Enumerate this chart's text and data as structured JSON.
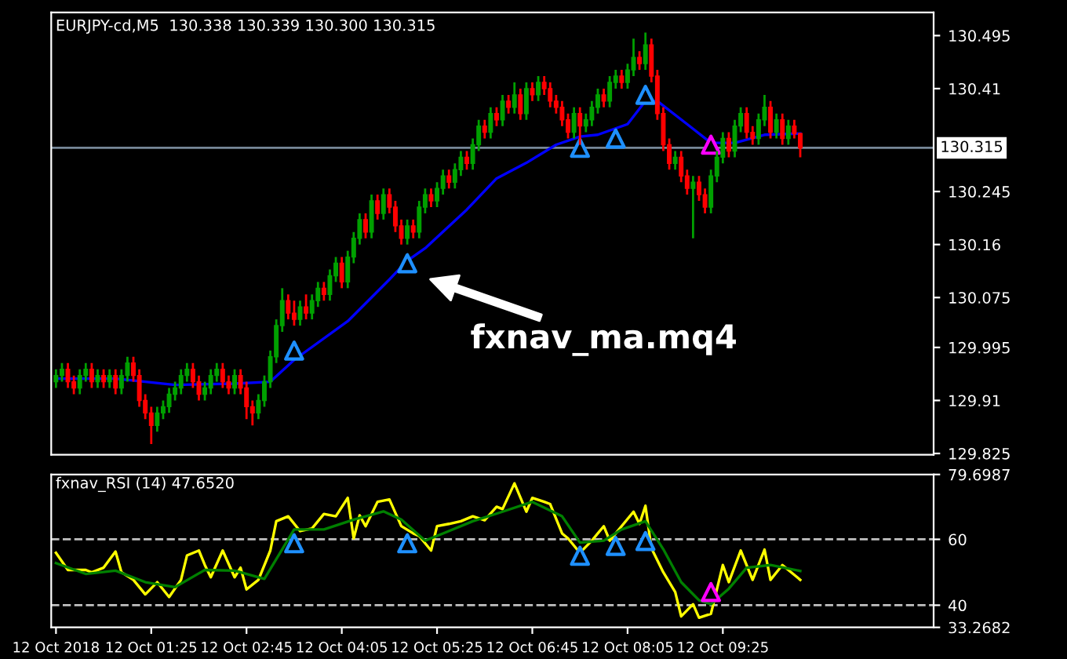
{
  "chart_data": [
    {
      "type": "candlestick",
      "title": "EURJPY-cd,M5  130.338 130.339 130.300 130.315",
      "colors": [
        "#00a000",
        "#00a000",
        "#ff0000",
        "#ff0000",
        "#00a000",
        "#00a000",
        "#ff0000",
        "#00a000",
        "#ff0000",
        "#00a000",
        "#ff0000",
        "#00a000",
        "#00a000",
        "#ff0000",
        "#ff0000",
        "#ff0000",
        "#ff0000",
        "#00a000",
        "#00a000",
        "#00a000",
        "#00a000",
        "#00a000",
        "#00a000",
        "#ff0000",
        "#ff0000",
        "#00a000",
        "#00a000",
        "#00a000",
        "#ff0000",
        "#ff0000",
        "#00a000",
        "#ff0000",
        "#ff0000",
        "#ff0000",
        "#00a000",
        "#00a000",
        "#00a000",
        "#00a000",
        "#00a000",
        "#ff0000",
        "#ff0000",
        "#00a000",
        "#ff0000",
        "#00a000",
        "#00a000",
        "#ff0000",
        "#00a000",
        "#00a000",
        "#ff0000",
        "#00a000",
        "#00a000",
        "#00a000",
        "#ff0000",
        "#00a000",
        "#ff0000",
        "#00a000",
        "#ff0000",
        "#ff0000",
        "#ff0000",
        "#00a000",
        "#ff0000",
        "#00a000",
        "#00a000",
        "#ff0000",
        "#00a000",
        "#00a000",
        "#ff0000",
        "#00a000",
        "#00a000",
        "#ff0000",
        "#00a000",
        "#00a000",
        "#ff0000",
        "#00a000",
        "#ff0000",
        "#00a000",
        "#ff0000",
        "#00a000",
        "#ff0000",
        "#00a000",
        "#ff0000",
        "#00a000",
        "#ff0000",
        "#ff0000",
        "#ff0000",
        "#ff0000",
        "#ff0000",
        "#00a000",
        "#ff0000",
        "#00a000",
        "#00a000",
        "#00a000",
        "#ff0000",
        "#00a000",
        "#00a000",
        "#ff0000",
        "#00a000",
        "#00a000",
        "#ff0000",
        "#00a000",
        "#ff0000",
        "#ff0000",
        "#ff0000",
        "#ff0000",
        "#00a000",
        "#ff0000",
        "#ff0000",
        "#00a000",
        "#ff0000",
        "#ff0000",
        "#00a000",
        "#00a000",
        "#00a000",
        "#ff0000",
        "#00a000",
        "#00a000",
        "#ff0000",
        "#ff0000",
        "#00a000",
        "#00a000",
        "#ff0000",
        "#00a000",
        "#ff0000",
        "#00a000",
        "#ff0000",
        "#ff0000"
      ],
      "x": [
        "2018-10-12T00:05",
        "2018-10-12T00:10",
        "2018-10-12T00:15",
        "2018-10-12T00:20",
        "2018-10-12T00:25",
        "2018-10-12T00:30",
        "2018-10-12T00:35",
        "2018-10-12T00:40",
        "2018-10-12T00:45",
        "2018-10-12T00:50",
        "2018-10-12T00:55",
        "2018-10-12T01:00",
        "2018-10-12T01:05",
        "2018-10-12T01:10",
        "2018-10-12T01:15",
        "2018-10-12T01:20",
        "2018-10-12T01:25",
        "2018-10-12T01:30",
        "2018-10-12T01:35",
        "2018-10-12T01:40",
        "2018-10-12T01:45",
        "2018-10-12T01:50",
        "2018-10-12T01:55",
        "2018-10-12T02:00",
        "2018-10-12T02:05",
        "2018-10-12T02:10",
        "2018-10-12T02:15",
        "2018-10-12T02:20",
        "2018-10-12T02:25",
        "2018-10-12T02:30",
        "2018-10-12T02:35",
        "2018-10-12T02:40",
        "2018-10-12T02:45",
        "2018-10-12T02:50",
        "2018-10-12T02:55",
        "2018-10-12T03:00",
        "2018-10-12T03:05",
        "2018-10-12T03:10",
        "2018-10-12T03:15",
        "2018-10-12T03:20",
        "2018-10-12T03:25",
        "2018-10-12T03:30",
        "2018-10-12T03:35",
        "2018-10-12T03:40",
        "2018-10-12T03:45",
        "2018-10-12T03:50",
        "2018-10-12T03:55",
        "2018-10-12T04:00",
        "2018-10-12T04:05",
        "2018-10-12T04:10",
        "2018-10-12T04:15",
        "2018-10-12T04:20",
        "2018-10-12T04:25",
        "2018-10-12T04:30",
        "2018-10-12T04:35",
        "2018-10-12T04:40",
        "2018-10-12T04:45",
        "2018-10-12T04:50",
        "2018-10-12T04:55",
        "2018-10-12T05:00",
        "2018-10-12T05:05",
        "2018-10-12T05:10",
        "2018-10-12T05:15",
        "2018-10-12T05:20",
        "2018-10-12T05:25",
        "2018-10-12T05:30",
        "2018-10-12T05:35",
        "2018-10-12T05:40",
        "2018-10-12T05:45",
        "2018-10-12T05:50",
        "2018-10-12T05:55",
        "2018-10-12T06:00",
        "2018-10-12T06:05",
        "2018-10-12T06:10",
        "2018-10-12T06:15",
        "2018-10-12T06:20",
        "2018-10-12T06:25",
        "2018-10-12T06:30",
        "2018-10-12T06:35",
        "2018-10-12T06:40",
        "2018-10-12T06:45",
        "2018-10-12T06:50",
        "2018-10-12T06:55",
        "2018-10-12T07:00",
        "2018-10-12T07:05",
        "2018-10-12T07:10",
        "2018-10-12T07:15",
        "2018-10-12T07:20",
        "2018-10-12T07:25",
        "2018-10-12T07:30",
        "2018-10-12T07:35",
        "2018-10-12T07:40",
        "2018-10-12T07:45",
        "2018-10-12T07:50",
        "2018-10-12T07:55",
        "2018-10-12T08:00",
        "2018-10-12T08:05",
        "2018-10-12T08:10",
        "2018-10-12T08:15",
        "2018-10-12T08:20",
        "2018-10-12T08:25",
        "2018-10-12T08:30",
        "2018-10-12T08:35",
        "2018-10-12T08:40",
        "2018-10-12T08:45",
        "2018-10-12T08:50",
        "2018-10-12T08:55",
        "2018-10-12T09:00",
        "2018-10-12T09:05",
        "2018-10-12T09:10",
        "2018-10-12T09:15",
        "2018-10-12T09:20",
        "2018-10-12T09:25",
        "2018-10-12T09:30",
        "2018-10-12T09:35",
        "2018-10-12T09:40",
        "2018-10-12T09:45",
        "2018-10-12T09:50",
        "2018-10-12T09:55",
        "2018-10-12T10:00",
        "2018-10-12T10:05",
        "2018-10-12T10:10",
        "2018-10-12T10:15",
        "2018-10-12T10:20",
        "2018-10-12T10:25",
        "2018-10-12T10:30"
      ],
      "ohlc": [
        [
          129.94,
          129.96,
          129.93,
          129.95
        ],
        [
          129.95,
          129.97,
          129.94,
          129.96
        ],
        [
          129.96,
          129.97,
          129.93,
          129.94
        ],
        [
          129.94,
          129.95,
          129.92,
          129.93
        ],
        [
          129.93,
          129.96,
          129.92,
          129.95
        ],
        [
          129.95,
          129.97,
          129.94,
          129.96
        ],
        [
          129.96,
          129.97,
          129.93,
          129.94
        ],
        [
          129.94,
          129.96,
          129.93,
          129.95
        ],
        [
          129.95,
          129.96,
          129.93,
          129.94
        ],
        [
          129.94,
          129.96,
          129.93,
          129.95
        ],
        [
          129.95,
          129.96,
          129.92,
          129.93
        ],
        [
          129.93,
          129.96,
          129.92,
          129.95
        ],
        [
          129.95,
          129.98,
          129.94,
          129.97
        ],
        [
          129.97,
          129.98,
          129.94,
          129.95
        ],
        [
          129.95,
          129.96,
          129.9,
          129.91
        ],
        [
          129.91,
          129.92,
          129.88,
          129.89
        ],
        [
          129.89,
          129.9,
          129.84,
          129.87
        ],
        [
          129.87,
          129.9,
          129.86,
          129.89
        ],
        [
          129.89,
          129.91,
          129.88,
          129.9
        ],
        [
          129.9,
          129.93,
          129.89,
          129.92
        ],
        [
          129.92,
          129.94,
          129.91,
          129.93
        ],
        [
          129.93,
          129.96,
          129.92,
          129.95
        ],
        [
          129.95,
          129.97,
          129.94,
          129.96
        ],
        [
          129.96,
          129.97,
          129.93,
          129.94
        ],
        [
          129.94,
          129.95,
          129.91,
          129.92
        ],
        [
          129.92,
          129.94,
          129.91,
          129.93
        ],
        [
          129.93,
          129.96,
          129.92,
          129.95
        ],
        [
          129.95,
          129.97,
          129.94,
          129.96
        ],
        [
          129.96,
          129.97,
          129.93,
          129.94
        ],
        [
          129.94,
          129.95,
          129.92,
          129.93
        ],
        [
          129.93,
          129.96,
          129.92,
          129.95
        ],
        [
          129.95,
          129.96,
          129.92,
          129.93
        ],
        [
          129.93,
          129.94,
          129.88,
          129.9
        ],
        [
          129.9,
          129.91,
          129.87,
          129.89
        ],
        [
          129.89,
          129.92,
          129.88,
          129.91
        ],
        [
          129.91,
          129.95,
          129.9,
          129.94
        ],
        [
          129.94,
          129.99,
          129.93,
          129.98
        ],
        [
          129.98,
          130.04,
          129.97,
          130.03
        ],
        [
          130.03,
          130.09,
          130.02,
          130.07
        ],
        [
          130.07,
          130.08,
          130.04,
          130.05
        ],
        [
          130.05,
          130.07,
          130.03,
          130.04
        ],
        [
          130.04,
          130.07,
          130.03,
          130.06
        ],
        [
          130.06,
          130.08,
          130.04,
          130.05
        ],
        [
          130.05,
          130.08,
          130.04,
          130.07
        ],
        [
          130.07,
          130.1,
          130.06,
          130.09
        ],
        [
          130.09,
          130.1,
          130.07,
          130.08
        ],
        [
          130.08,
          130.12,
          130.07,
          130.11
        ],
        [
          130.11,
          130.14,
          130.1,
          130.13
        ],
        [
          130.13,
          130.14,
          130.09,
          130.1
        ],
        [
          130.1,
          130.15,
          130.09,
          130.14
        ],
        [
          130.14,
          130.18,
          130.13,
          130.17
        ],
        [
          130.17,
          130.21,
          130.16,
          130.2
        ],
        [
          130.2,
          130.21,
          130.17,
          130.18
        ],
        [
          130.18,
          130.24,
          130.17,
          130.23
        ],
        [
          130.23,
          130.24,
          130.2,
          130.21
        ],
        [
          130.21,
          130.25,
          130.2,
          130.24
        ],
        [
          130.24,
          130.25,
          130.21,
          130.22
        ],
        [
          130.22,
          130.23,
          130.18,
          130.19
        ],
        [
          130.19,
          130.2,
          130.16,
          130.17
        ],
        [
          130.17,
          130.2,
          130.16,
          130.19
        ],
        [
          130.19,
          130.2,
          130.17,
          130.18
        ],
        [
          130.18,
          130.23,
          130.17,
          130.22
        ],
        [
          130.22,
          130.25,
          130.21,
          130.24
        ],
        [
          130.24,
          130.25,
          130.22,
          130.23
        ],
        [
          130.23,
          130.26,
          130.22,
          130.25
        ],
        [
          130.25,
          130.28,
          130.24,
          130.27
        ],
        [
          130.27,
          130.28,
          130.25,
          130.26
        ],
        [
          130.26,
          130.29,
          130.25,
          130.28
        ],
        [
          130.28,
          130.31,
          130.27,
          130.3
        ],
        [
          130.3,
          130.31,
          130.28,
          130.29
        ],
        [
          130.29,
          130.33,
          130.28,
          130.32
        ],
        [
          130.32,
          130.36,
          130.31,
          130.35
        ],
        [
          130.35,
          130.36,
          130.33,
          130.34
        ],
        [
          130.34,
          130.38,
          130.33,
          130.37
        ],
        [
          130.37,
          130.38,
          130.35,
          130.36
        ],
        [
          130.36,
          130.4,
          130.35,
          130.39
        ],
        [
          130.39,
          130.4,
          130.37,
          130.38
        ],
        [
          130.38,
          130.42,
          130.37,
          130.4
        ],
        [
          130.4,
          130.41,
          130.36,
          130.37
        ],
        [
          130.37,
          130.42,
          130.36,
          130.41
        ],
        [
          130.41,
          130.42,
          130.39,
          130.4
        ],
        [
          130.4,
          130.43,
          130.39,
          130.42
        ],
        [
          130.42,
          130.43,
          130.4,
          130.41
        ],
        [
          130.41,
          130.42,
          130.38,
          130.39
        ],
        [
          130.39,
          130.4,
          130.37,
          130.38
        ],
        [
          130.38,
          130.39,
          130.35,
          130.36
        ],
        [
          130.36,
          130.37,
          130.33,
          130.34
        ],
        [
          130.34,
          130.38,
          130.33,
          130.37
        ],
        [
          130.37,
          130.38,
          130.32,
          130.35
        ],
        [
          130.35,
          130.37,
          130.34,
          130.36
        ],
        [
          130.36,
          130.39,
          130.35,
          130.38
        ],
        [
          130.38,
          130.41,
          130.37,
          130.4
        ],
        [
          130.4,
          130.41,
          130.38,
          130.39
        ],
        [
          130.39,
          130.43,
          130.38,
          130.42
        ],
        [
          130.42,
          130.44,
          130.41,
          130.43
        ],
        [
          130.43,
          130.44,
          130.41,
          130.42
        ],
        [
          130.42,
          130.45,
          130.41,
          130.44
        ],
        [
          130.44,
          130.49,
          130.43,
          130.46
        ],
        [
          130.46,
          130.47,
          130.44,
          130.45
        ],
        [
          130.45,
          130.5,
          130.44,
          130.48
        ],
        [
          130.48,
          130.49,
          130.42,
          130.43
        ],
        [
          130.43,
          130.44,
          130.36,
          130.37
        ],
        [
          130.37,
          130.38,
          130.31,
          130.32
        ],
        [
          130.32,
          130.33,
          130.28,
          130.29
        ],
        [
          130.29,
          130.31,
          130.28,
          130.3
        ],
        [
          130.3,
          130.31,
          130.26,
          130.27
        ],
        [
          130.27,
          130.28,
          130.24,
          130.25
        ],
        [
          130.25,
          130.27,
          130.17,
          130.26
        ],
        [
          130.26,
          130.27,
          130.23,
          130.24
        ],
        [
          130.24,
          130.25,
          130.21,
          130.22
        ],
        [
          130.22,
          130.28,
          130.21,
          130.27
        ],
        [
          130.27,
          130.31,
          130.26,
          130.3
        ],
        [
          130.3,
          130.34,
          130.29,
          130.33
        ],
        [
          130.33,
          130.34,
          130.3,
          130.31
        ],
        [
          130.31,
          130.36,
          130.3,
          130.35
        ],
        [
          130.35,
          130.38,
          130.34,
          130.37
        ],
        [
          130.37,
          130.38,
          130.33,
          130.34
        ],
        [
          130.34,
          130.35,
          130.32,
          130.33
        ],
        [
          130.33,
          130.37,
          130.32,
          130.36
        ],
        [
          130.36,
          130.4,
          130.35,
          130.38
        ],
        [
          130.38,
          130.39,
          130.33,
          130.34
        ],
        [
          130.34,
          130.37,
          130.33,
          130.36
        ],
        [
          130.36,
          130.37,
          130.32,
          130.33
        ],
        [
          130.33,
          130.36,
          130.32,
          130.35
        ],
        [
          130.35,
          130.36,
          130.33,
          130.338
        ],
        [
          130.338,
          130.339,
          130.3,
          130.315
        ]
      ],
      "series": [
        {
          "type": "line",
          "color": "#0000ff",
          "x": [
            "2018-10-12T00:05",
            "2018-10-12T00:55",
            "2018-10-12T01:45",
            "2018-10-12T02:35",
            "2018-10-12T03:05",
            "2018-10-12T03:25",
            "2018-10-12T04:10",
            "2018-10-12T04:45",
            "2018-10-12T05:00",
            "2018-10-12T05:15",
            "2018-10-12T05:50",
            "2018-10-12T06:15",
            "2018-10-12T06:40",
            "2018-10-12T07:05",
            "2018-10-12T07:25",
            "2018-10-12T07:40",
            "2018-10-12T08:05",
            "2018-10-12T08:20",
            "2018-10-12T08:30",
            "2018-10-12T08:55",
            "2018-10-12T09:15",
            "2018-10-12T09:35",
            "2018-10-12T10:00",
            "2018-10-12T10:30"
          ],
          "values": [
            129.945,
            129.945,
            129.935,
            129.937,
            129.94,
            129.975,
            130.037,
            130.104,
            130.134,
            130.154,
            130.216,
            130.266,
            130.291,
            130.32,
            130.333,
            130.336,
            130.353,
            130.39,
            130.39,
            130.353,
            130.323,
            130.323,
            130.336,
            130.338
          ]
        },
        {
          "type": "scatter",
          "color": "#1e90ff",
          "marker": "triangle",
          "x": [
            "2018-10-12T03:25",
            "2018-10-12T05:00",
            "2018-10-12T07:25",
            "2018-10-12T07:55",
            "2018-10-12T08:20"
          ],
          "values": [
            129.99,
            130.13,
            130.315,
            130.33,
            130.4
          ]
        },
        {
          "type": "scatter",
          "color": "#ff00ff",
          "marker": "triangle",
          "x": [
            "2018-10-12T09:15"
          ],
          "values": [
            130.32
          ]
        }
      ],
      "ref_lines": [
        {
          "axis": "y",
          "value": 130.315,
          "label": "130.315",
          "color": "#778899"
        }
      ],
      "annotations": [
        "fxnav_ma.mq4"
      ],
      "xlim": [
        "2018-10-12T00:01",
        "2018-10-12T12:22"
      ],
      "ylim": [
        129.823,
        130.532
      ],
      "yticks": [
        130.495,
        130.41,
        130.245,
        130.16,
        130.075,
        129.995,
        129.91,
        129.825
      ],
      "tick_labels": "y"
    },
    {
      "type": "line",
      "title": "fxnav_RSI (14) 47.6520",
      "series": [
        {
          "type": "line",
          "color": "#ffff00",
          "x": [
            "2018-10-12T00:05",
            "2018-10-12T00:15",
            "2018-10-12T00:30",
            "2018-10-12T00:35",
            "2018-10-12T00:45",
            "2018-10-12T00:55",
            "2018-10-12T01:00",
            "2018-10-12T01:10",
            "2018-10-12T01:20",
            "2018-10-12T01:30",
            "2018-10-12T01:40",
            "2018-10-12T01:50",
            "2018-10-12T01:55",
            "2018-10-12T02:05",
            "2018-10-12T02:10",
            "2018-10-12T02:15",
            "2018-10-12T02:25",
            "2018-10-12T02:35",
            "2018-10-12T02:40",
            "2018-10-12T02:45",
            "2018-10-12T02:55",
            "2018-10-12T03:05",
            "2018-10-12T03:10",
            "2018-10-12T03:20",
            "2018-10-12T03:30",
            "2018-10-12T03:40",
            "2018-10-12T03:50",
            "2018-10-12T04:00",
            "2018-10-12T04:10",
            "2018-10-12T04:15",
            "2018-10-12T04:20",
            "2018-10-12T04:25",
            "2018-10-12T04:35",
            "2018-10-12T04:45",
            "2018-10-12T04:55",
            "2018-10-12T05:05",
            "2018-10-12T05:10",
            "2018-10-12T05:20",
            "2018-10-12T05:25",
            "2018-10-12T05:35",
            "2018-10-12T05:45",
            "2018-10-12T05:55",
            "2018-10-12T06:05",
            "2018-10-12T06:15",
            "2018-10-12T06:20",
            "2018-10-12T06:30",
            "2018-10-12T06:40",
            "2018-10-12T06:45",
            "2018-10-12T06:55",
            "2018-10-12T07:00",
            "2018-10-12T07:10",
            "2018-10-12T07:15",
            "2018-10-12T07:25",
            "2018-10-12T07:35",
            "2018-10-12T07:45",
            "2018-10-12T07:50",
            "2018-10-12T08:10",
            "2018-10-12T08:15",
            "2018-10-12T08:20",
            "2018-10-12T08:25",
            "2018-10-12T08:35",
            "2018-10-12T08:45",
            "2018-10-12T08:50",
            "2018-10-12T09:00",
            "2018-10-12T09:05",
            "2018-10-12T09:15",
            "2018-10-12T09:25",
            "2018-10-12T09:30",
            "2018-10-12T09:40",
            "2018-10-12T09:50",
            "2018-10-12T10:00",
            "2018-10-12T10:05",
            "2018-10-12T10:15",
            "2018-10-12T10:30"
          ],
          "values": [
            55.9,
            50.7,
            50.7,
            50,
            51.4,
            56.3,
            50,
            47.7,
            43.3,
            47,
            42.5,
            47.7,
            55.1,
            56.6,
            52.2,
            48.5,
            56.6,
            48.5,
            51.4,
            44.8,
            47.7,
            56.6,
            65.5,
            67,
            62.5,
            63.3,
            67.7,
            67,
            72.6,
            60.3,
            67.3,
            64,
            71.4,
            72.1,
            64,
            61.8,
            61,
            56.6,
            64,
            64.7,
            65.5,
            67,
            65.8,
            69.9,
            69.2,
            77,
            68.4,
            72.6,
            71.4,
            70.7,
            61.8,
            60.3,
            55.9,
            59.6,
            64,
            59.6,
            68.4,
            64.7,
            70.2,
            57.3,
            50,
            44,
            36.6,
            40.3,
            36.2,
            37.4,
            52.2,
            47,
            56.6,
            47.7,
            56.9,
            47.7,
            52.2,
            47.7
          ]
        },
        {
          "type": "line",
          "color": "#008000",
          "x": [
            "2018-10-12T00:05",
            "2018-10-12T00:30",
            "2018-10-12T00:55",
            "2018-10-12T01:20",
            "2018-10-12T01:45",
            "2018-10-12T02:10",
            "2018-10-12T02:35",
            "2018-10-12T03:00",
            "2018-10-12T03:15",
            "2018-10-12T03:25",
            "2018-10-12T03:50",
            "2018-10-12T04:15",
            "2018-10-12T04:40",
            "2018-10-12T04:55",
            "2018-10-12T05:15",
            "2018-10-12T05:30",
            "2018-10-12T05:55",
            "2018-10-12T06:20",
            "2018-10-12T06:45",
            "2018-10-12T07:10",
            "2018-10-12T07:25",
            "2018-10-12T07:45",
            "2018-10-12T08:00",
            "2018-10-12T08:20",
            "2018-10-12T08:35",
            "2018-10-12T08:50",
            "2018-10-12T09:05",
            "2018-10-12T09:15",
            "2018-10-12T09:30",
            "2018-10-12T09:45",
            "2018-10-12T10:05",
            "2018-10-12T10:30"
          ],
          "values": [
            52.8,
            49.5,
            50.5,
            47,
            45.5,
            50.7,
            50.5,
            48,
            57,
            63,
            63,
            66,
            68.5,
            66,
            59.6,
            61.8,
            65.5,
            68.4,
            71.4,
            67,
            59,
            59.6,
            63,
            65.5,
            57,
            47,
            41.5,
            40.3,
            45,
            51.4,
            52.2,
            50.4
          ]
        },
        {
          "type": "scatter",
          "color": "#1e90ff",
          "marker": "triangle",
          "x": [
            "2018-10-12T03:25",
            "2018-10-12T05:00",
            "2018-10-12T07:25",
            "2018-10-12T07:55",
            "2018-10-12T08:20"
          ],
          "values": [
            58.8,
            58.8,
            55,
            58,
            59.5
          ]
        },
        {
          "type": "scatter",
          "color": "#ff00ff",
          "marker": "triangle",
          "x": [
            "2018-10-12T09:15"
          ],
          "values": [
            44
          ]
        }
      ],
      "ref_lines": [
        {
          "axis": "y",
          "value": 60,
          "color": "#c0c0c0",
          "line_style": "dashed"
        },
        {
          "axis": "y",
          "value": 40,
          "color": "#c0c0c0",
          "line_style": "dashed"
        }
      ],
      "xlim": [
        "2018-10-12T00:01",
        "2018-10-12T12:22"
      ],
      "ylim": [
        33.2682,
        79.6987
      ],
      "xticks": [
        {
          "value": "2018-10-12T00:05",
          "label": "12 Oct 2018"
        },
        {
          "value": "2018-10-12T01:25",
          "label": "12 Oct 01:25"
        },
        {
          "value": "2018-10-12T02:45",
          "label": "12 Oct 02:45"
        },
        {
          "value": "2018-10-12T04:05",
          "label": "12 Oct 04:05"
        },
        {
          "value": "2018-10-12T05:25",
          "label": "12 Oct 05:25"
        },
        {
          "value": "2018-10-12T06:45",
          "label": "12 Oct 06:45"
        },
        {
          "value": "2018-10-12T08:05",
          "label": "12 Oct 08:05"
        },
        {
          "value": "2018-10-12T09:25",
          "label": "12 Oct 09:25"
        }
      ],
      "yticks": [
        79.6987,
        60,
        40,
        33.2682
      ]
    }
  ]
}
